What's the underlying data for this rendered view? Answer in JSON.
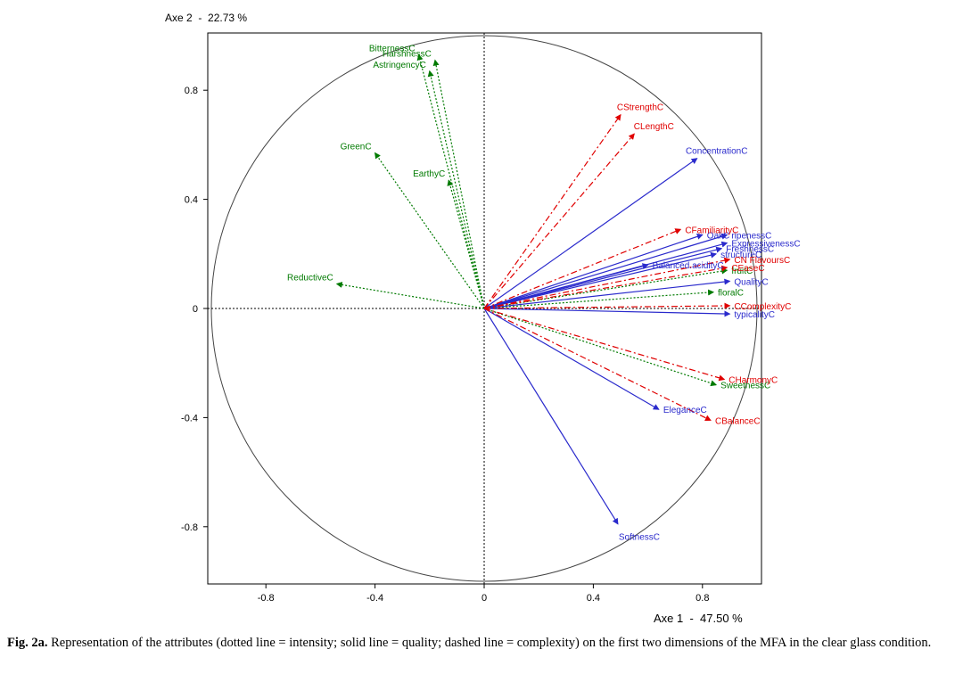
{
  "chart_data": {
    "type": "scatter",
    "title": "",
    "xlabel": "Axe 1  -  47.50 %",
    "ylabel": "Axe 2  -  22.73 %",
    "xlim": [
      -1,
      1
    ],
    "ylim": [
      -1,
      1
    ],
    "xticks": [
      {
        "value": -0.8,
        "label": "-0.8"
      },
      {
        "value": -0.4,
        "label": "-0.4"
      },
      {
        "value": 0,
        "label": "0"
      },
      {
        "value": 0.4,
        "label": "0.4"
      },
      {
        "value": 0.8,
        "label": "0.8"
      }
    ],
    "yticks": [
      {
        "value": 0.8,
        "label": "0.8"
      },
      {
        "value": 0.4,
        "label": "0.4"
      },
      {
        "value": 0,
        "label": "0"
      },
      {
        "value": -0.4,
        "label": "-0.4"
      },
      {
        "value": -0.8,
        "label": "-0.8"
      }
    ],
    "correlation_circle": true,
    "series": [
      {
        "name": "intensity",
        "style": "dotted",
        "color": "#007a00",
        "vectors": [
          {
            "label": "BitternessC",
            "x": -0.24,
            "y": 0.93
          },
          {
            "label": "HarshnessC",
            "x": -0.18,
            "y": 0.91
          },
          {
            "label": "AstringencyC",
            "x": -0.2,
            "y": 0.87
          },
          {
            "label": "GreenC",
            "x": -0.4,
            "y": 0.57
          },
          {
            "label": "EarthyC",
            "x": -0.13,
            "y": 0.47
          },
          {
            "label": "ReductiveC",
            "x": -0.54,
            "y": 0.09
          },
          {
            "label": "fruitC",
            "x": 0.89,
            "y": 0.14
          },
          {
            "label": "floralC",
            "x": 0.84,
            "y": 0.06
          },
          {
            "label": "SweetnessC",
            "x": 0.85,
            "y": -0.28
          }
        ]
      },
      {
        "name": "quality",
        "style": "solid",
        "color": "#2a2acc",
        "vectors": [
          {
            "label": "ConcentrationC",
            "x": 0.78,
            "y": 0.55
          },
          {
            "label": "ripenessC",
            "x": 0.89,
            "y": 0.27
          },
          {
            "label": "OakC",
            "x": 0.8,
            "y": 0.27
          },
          {
            "label": "ExpressivenessC",
            "x": 0.89,
            "y": 0.24
          },
          {
            "label": "FreshnessC",
            "x": 0.87,
            "y": 0.22
          },
          {
            "label": "structureC",
            "x": 0.85,
            "y": 0.2
          },
          {
            "label": "Balanced.acidityC",
            "x": 0.6,
            "y": 0.16
          },
          {
            "label": "QualityC",
            "x": 0.9,
            "y": 0.1
          },
          {
            "label": "typicalityC",
            "x": 0.9,
            "y": -0.02
          },
          {
            "label": "EleganceC",
            "x": 0.64,
            "y": -0.37
          },
          {
            "label": "SoftnessC",
            "x": 0.49,
            "y": -0.79
          }
        ]
      },
      {
        "name": "complexity",
        "style": "dashed",
        "color": "#e00000",
        "vectors": [
          {
            "label": "CStrengthC",
            "x": 0.5,
            "y": 0.71
          },
          {
            "label": "CLengthC",
            "x": 0.55,
            "y": 0.64
          },
          {
            "label": "CFamiliarityC",
            "x": 0.72,
            "y": 0.29
          },
          {
            "label": "CN FlavoursC",
            "x": 0.9,
            "y": 0.18
          },
          {
            "label": "CEaseC",
            "x": 0.89,
            "y": 0.15
          },
          {
            "label": "CComplexityC",
            "x": 0.9,
            "y": 0.01
          },
          {
            "label": "CHarmonyC",
            "x": 0.88,
            "y": -0.26
          },
          {
            "label": "CBalanceC",
            "x": 0.83,
            "y": -0.41
          }
        ]
      }
    ]
  },
  "caption": {
    "label": "Fig. 2a.",
    "text": " Representation of the attributes (dotted line = intensity; solid line = quality; dashed line = complexity) on the first two dimensions of the MFA in the clear glass condition."
  }
}
